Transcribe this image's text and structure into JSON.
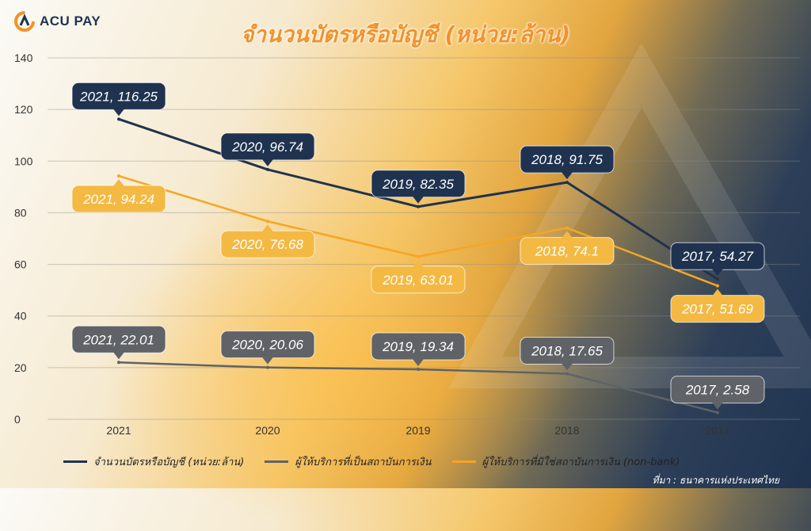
{
  "brand": {
    "name": "ACU PAY"
  },
  "source": "ที่มา : ธนาคารแห่งประเทศไทย",
  "chart_data": {
    "type": "line",
    "title": "จำนวนบัตรหรือบัญชี (หน่วย:ล้าน)",
    "categories": [
      "2021",
      "2020",
      "2019",
      "2018",
      "2017"
    ],
    "ylim": [
      0,
      140
    ],
    "yticks": [
      0,
      20,
      40,
      60,
      80,
      100,
      120,
      140
    ],
    "grid": true,
    "legend_position": "bottom",
    "series": [
      {
        "name": "จำนวนบัตรหรือบัญชี (หน่วย:ล้าน)",
        "color": "#1f3350",
        "values": [
          116.25,
          96.74,
          82.35,
          91.75,
          54.27
        ],
        "labels": [
          "2021, 116.25",
          "2020, 96.74",
          "2019, 82.35",
          "2018, 91.75",
          "2017, 54.27"
        ]
      },
      {
        "name": "ผู้ให้บริการที่เป็นสถาบันการเงิน",
        "color": "#5f6368",
        "values": [
          22.01,
          20.06,
          19.34,
          17.65,
          2.58
        ],
        "labels": [
          "2021, 22.01",
          "2020, 20.06",
          "2019, 19.34",
          "2018, 17.65",
          "2017, 2.58"
        ]
      },
      {
        "name": "ผู้ให้บริการที่มิใช่สถาบันการเงิน (non-bank)",
        "color": "#f5a623",
        "values": [
          94.24,
          76.68,
          63.01,
          74.1,
          51.69
        ],
        "labels": [
          "2021, 94.24",
          "2020, 76.68",
          "2019, 63.01",
          "2018, 74.1",
          "2017, 51.69"
        ]
      }
    ]
  }
}
